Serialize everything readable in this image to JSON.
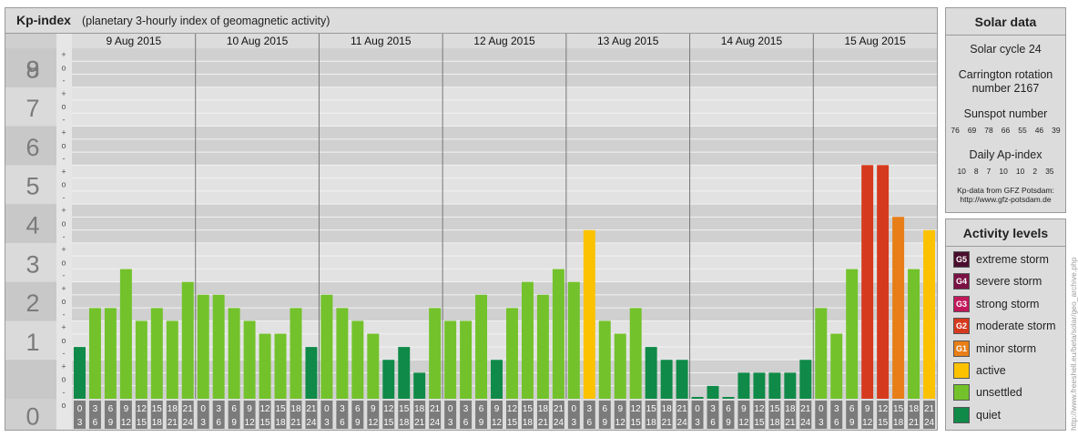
{
  "header": {
    "title": "Kp-index",
    "subtitle": "(planetary 3-hourly index of geomagnetic activity)"
  },
  "solar": {
    "title": "Solar data",
    "cycle_text": "Solar cycle 24",
    "carrington_line1": "Carrington rotation",
    "carrington_line2": "number 2167",
    "sunspot_title": "Sunspot number",
    "sunspot_values": [
      "76",
      "69",
      "78",
      "66",
      "55",
      "46",
      "39"
    ],
    "ap_title": "Daily Ap-index",
    "ap_values": [
      "10",
      "8",
      "7",
      "10",
      "10",
      "2",
      "35"
    ],
    "source_line1": "Kp-data from GFZ Potsdam:",
    "source_line2": "http://www.gfz-potsdam.de"
  },
  "activity": {
    "title": "Activity levels",
    "levels": [
      {
        "badge": "G5",
        "label": "extreme storm",
        "color": "#4a0d2d"
      },
      {
        "badge": "G4",
        "label": "severe storm",
        "color": "#7a1245"
      },
      {
        "badge": "G3",
        "label": "strong storm",
        "color": "#c2185b"
      },
      {
        "badge": "G2",
        "label": "moderate storm",
        "color": "#d63a1e"
      },
      {
        "badge": "G1",
        "label": "minor storm",
        "color": "#e87e17"
      },
      {
        "badge": "",
        "label": "active",
        "color": "#fcc200"
      },
      {
        "badge": "",
        "label": "unsettled",
        "color": "#73c22b"
      },
      {
        "badge": "",
        "label": "quiet",
        "color": "#0f8a48"
      }
    ]
  },
  "credit": "http://www.freeshell.eu/beta/solar/geo_archive.php",
  "chart_data": {
    "type": "bar",
    "ylim": [
      0,
      9
    ],
    "y_major_ticks": [
      "0",
      "1",
      "2",
      "3",
      "4",
      "5",
      "6",
      "7",
      "8",
      "9"
    ],
    "y_minor_labels": [
      "+",
      "o",
      "-"
    ],
    "days": [
      "9 Aug 2015",
      "10 Aug 2015",
      "11 Aug 2015",
      "12 Aug 2015",
      "13 Aug 2015",
      "14 Aug 2015",
      "15 Aug 2015"
    ],
    "interval_start_hours": [
      "0",
      "3",
      "6",
      "9",
      "12",
      "15",
      "18",
      "21"
    ],
    "interval_end_hours": [
      "3",
      "6",
      "9",
      "12",
      "15",
      "18",
      "21",
      "24"
    ],
    "values": [
      1.33,
      2.33,
      2.33,
      3.33,
      2.0,
      2.33,
      2.0,
      3.0,
      2.67,
      2.67,
      2.33,
      2.0,
      1.67,
      1.67,
      2.33,
      1.33,
      2.67,
      2.33,
      2.0,
      1.67,
      1.0,
      1.33,
      0.67,
      2.33,
      2.0,
      2.0,
      2.67,
      1.0,
      2.33,
      3.0,
      2.67,
      3.33,
      3.0,
      4.33,
      2.0,
      1.67,
      2.33,
      1.33,
      1.0,
      1.0,
      0.0,
      0.33,
      0.0,
      0.67,
      0.67,
      0.67,
      0.67,
      1.0,
      2.33,
      1.67,
      3.33,
      6.0,
      6.0,
      4.67,
      3.33,
      4.33
    ],
    "colors": {
      "quiet": "#0f8a48",
      "unsettled": "#73c22b",
      "active": "#fcc200",
      "minor_storm": "#e87e17",
      "moderate_storm": "#d63a1e"
    }
  }
}
